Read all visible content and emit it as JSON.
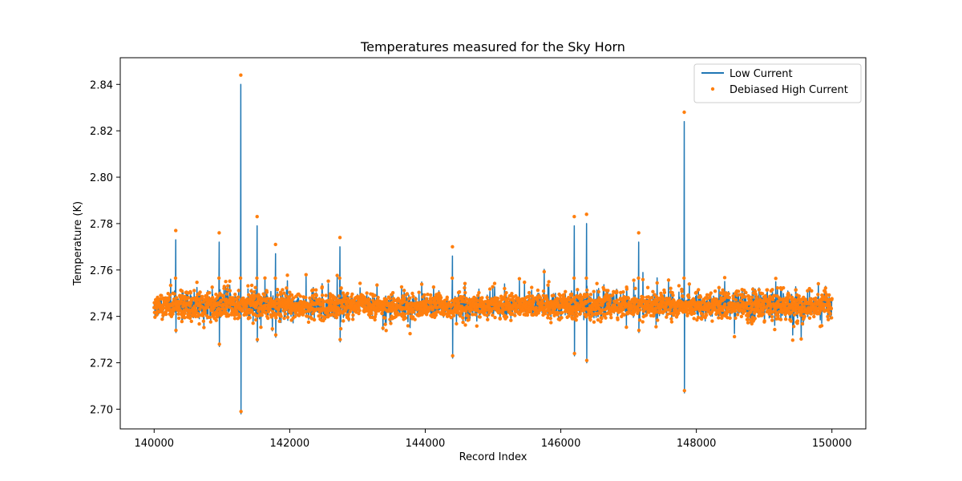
{
  "chart_data": {
    "type": "line",
    "title": "Temperatures measured for the Sky Horn",
    "xlabel": "Record Index",
    "ylabel": "Temperature (K)",
    "xlim": [
      139500,
      150500
    ],
    "ylim": [
      2.6915,
      2.8515
    ],
    "xticks": [
      140000,
      142000,
      144000,
      146000,
      148000,
      150000
    ],
    "yticks": [
      2.7,
      2.72,
      2.74,
      2.76,
      2.78,
      2.8,
      2.82,
      2.84
    ],
    "ytick_labels": [
      "2.70",
      "2.72",
      "2.74",
      "2.76",
      "2.78",
      "2.80",
      "2.82",
      "2.84"
    ],
    "grid": false,
    "legend_position": "top-right",
    "baseline": 2.7445,
    "x_range": [
      140000,
      150000
    ],
    "series": [
      {
        "name": "Low Current",
        "style": "line",
        "color": "#1f77b4"
      },
      {
        "name": "Debiased High Current",
        "style": "scatter",
        "color": "#ff7f0e"
      }
    ],
    "notable_spikes": [
      {
        "x": 141280,
        "low": 2.698,
        "high": 2.84
      },
      {
        "x": 141280,
        "low": 2.698,
        "high": 2.844
      },
      {
        "x": 141520,
        "low": 2.729,
        "high": 2.783
      },
      {
        "x": 140960,
        "low": 2.727,
        "high": 2.776
      },
      {
        "x": 140320,
        "low": 2.733,
        "high": 2.777
      },
      {
        "x": 141790,
        "low": 2.731,
        "high": 2.771
      },
      {
        "x": 142740,
        "low": 2.729,
        "high": 2.774
      },
      {
        "x": 144400,
        "low": 2.722,
        "high": 2.77
      },
      {
        "x": 146200,
        "low": 2.723,
        "high": 2.783
      },
      {
        "x": 146380,
        "low": 2.72,
        "high": 2.784
      },
      {
        "x": 147150,
        "low": 2.733,
        "high": 2.776
      },
      {
        "x": 147820,
        "low": 2.707,
        "high": 2.828
      }
    ]
  }
}
